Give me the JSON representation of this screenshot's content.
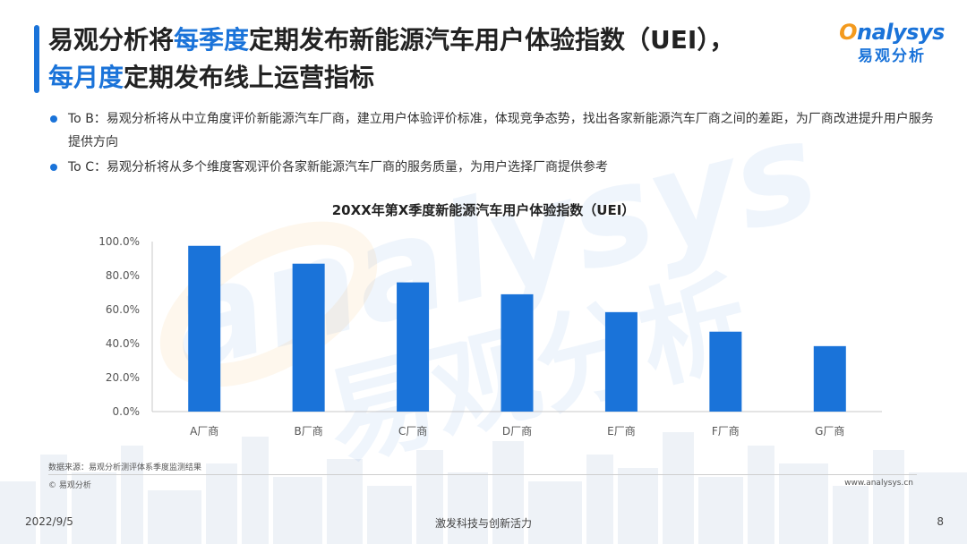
{
  "title": {
    "part1": "易观分析将",
    "hl1": "每季度",
    "part2": "定期发布新能源汽车用户体验指数（UEI），",
    "hl2": "每月度",
    "part3": "定期发布线上运营指标"
  },
  "logo": {
    "en_o": "O",
    "en_rest": "nalysys",
    "cn": "易观分析"
  },
  "bullets": [
    "To B：易观分析将从中立角度评价新能源汽车厂商，建立用户体验评价标准，体现竞争态势，找出各家新能源汽车厂商之间的差距，为厂商改进提升用户服务提供方向",
    "To C：易观分析将从多个维度客观评价各家新能源汽车厂商的服务质量，为用户选择厂商提供参考"
  ],
  "chart_data": {
    "type": "bar",
    "title": "20XX年第X季度新能源汽车用户体验指数（UEI）",
    "categories": [
      "A厂商",
      "B厂商",
      "C厂商",
      "D厂商",
      "E厂商",
      "F厂商",
      "G厂商"
    ],
    "values": [
      97.5,
      87,
      76,
      69,
      58.5,
      47,
      38.5
    ],
    "ylim": [
      0,
      100
    ],
    "yticks": [
      "0.0%",
      "20.0%",
      "40.0%",
      "60.0%",
      "80.0%",
      "100.0%"
    ],
    "xlabel": "",
    "ylabel": "",
    "bar_color": "#1a73d9",
    "grid": false,
    "legend": "none"
  },
  "source": "数据来源：易观分析测评体系季度监测结果",
  "copyright": "© 易观分析",
  "website": "www.analysys.cn",
  "footer": {
    "date": "2022/9/5",
    "slogan": "激发科技与创新活力",
    "page": "8"
  },
  "colors": {
    "accent": "#1a73d9",
    "logo_orange": "#f39a1e"
  },
  "watermark": {
    "en": "analysys",
    "cn": "易观分析"
  }
}
